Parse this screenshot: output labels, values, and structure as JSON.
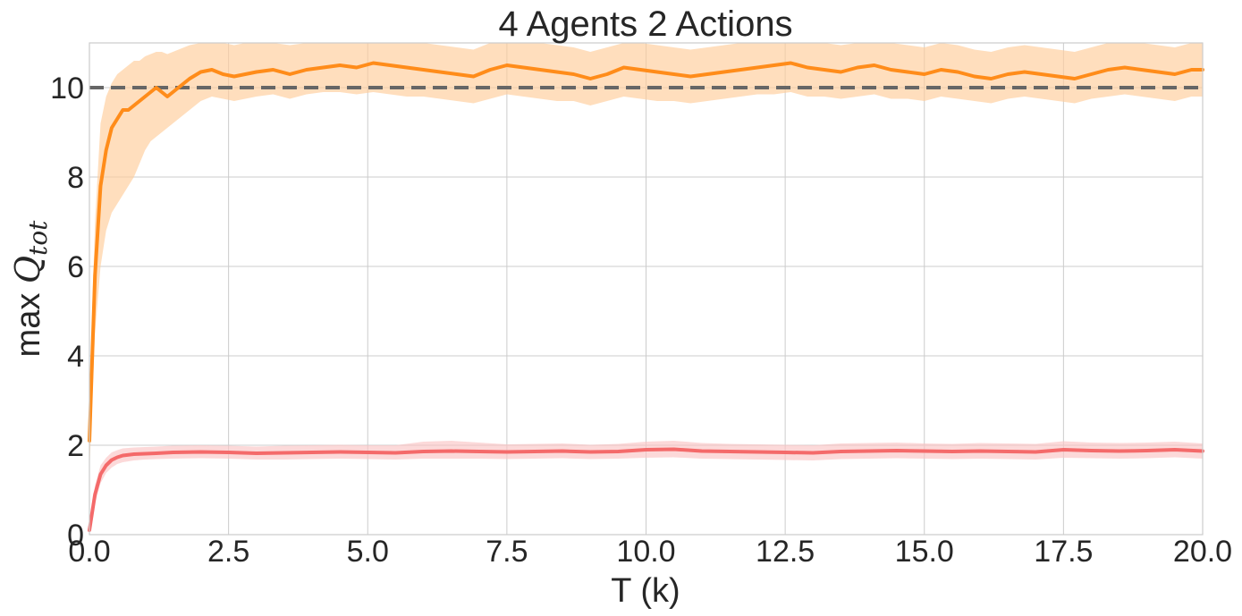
{
  "chart_data": {
    "type": "line",
    "title": "4 Agents 2 Actions",
    "xlabel": "T (k)",
    "ylabel": {
      "prefix": "max ",
      "symbol": "Q",
      "subscript": "tot"
    },
    "xlim": [
      0,
      20
    ],
    "ylim": [
      0,
      11
    ],
    "x_ticks": [
      0,
      2.5,
      5,
      7.5,
      10,
      12.5,
      15,
      17.5,
      20
    ],
    "x_tick_labels": [
      "0.0",
      "2.5",
      "5.0",
      "7.5",
      "10.0",
      "12.5",
      "15.0",
      "17.5",
      "20.0"
    ],
    "y_ticks": [
      0,
      2,
      4,
      6,
      8,
      10
    ],
    "y_tick_labels": [
      "0",
      "2",
      "4",
      "6",
      "8",
      "10"
    ],
    "grid": true,
    "reference_line": {
      "y": 10,
      "style": "dashed",
      "color": "#666666"
    },
    "series": [
      {
        "color": "#ff8c1a",
        "band_color": "#ffcc99",
        "x": [
          0,
          0.1,
          0.2,
          0.3,
          0.4,
          0.5,
          0.6,
          0.7,
          0.8,
          0.9,
          1.0,
          1.1,
          1.2,
          1.3,
          1.4,
          1.5,
          1.6,
          1.7,
          1.8,
          2.0,
          2.2,
          2.4,
          2.6,
          2.8,
          3.0,
          3.3,
          3.6,
          3.9,
          4.2,
          4.5,
          4.8,
          5.1,
          5.4,
          5.7,
          6.0,
          6.3,
          6.6,
          6.9,
          7.2,
          7.5,
          7.8,
          8.1,
          8.4,
          8.7,
          9.0,
          9.3,
          9.6,
          9.9,
          10.2,
          10.5,
          10.8,
          11.1,
          11.4,
          11.7,
          12.0,
          12.3,
          12.6,
          12.9,
          13.2,
          13.5,
          13.8,
          14.1,
          14.4,
          14.7,
          15.0,
          15.3,
          15.6,
          15.9,
          16.2,
          16.5,
          16.8,
          17.1,
          17.4,
          17.7,
          18.0,
          18.3,
          18.6,
          18.9,
          19.2,
          19.5,
          19.8,
          20.0
        ],
        "mean": [
          2.1,
          5.8,
          7.8,
          8.6,
          9.1,
          9.3,
          9.5,
          9.5,
          9.6,
          9.7,
          9.8,
          9.9,
          10.0,
          9.9,
          9.8,
          9.9,
          10.0,
          10.1,
          10.2,
          10.35,
          10.4,
          10.3,
          10.25,
          10.3,
          10.35,
          10.4,
          10.3,
          10.4,
          10.45,
          10.5,
          10.45,
          10.55,
          10.5,
          10.45,
          10.4,
          10.35,
          10.3,
          10.25,
          10.4,
          10.5,
          10.45,
          10.4,
          10.35,
          10.3,
          10.2,
          10.3,
          10.45,
          10.4,
          10.35,
          10.3,
          10.25,
          10.3,
          10.35,
          10.4,
          10.45,
          10.5,
          10.55,
          10.45,
          10.4,
          10.35,
          10.45,
          10.5,
          10.4,
          10.35,
          10.3,
          10.4,
          10.35,
          10.25,
          10.2,
          10.3,
          10.35,
          10.3,
          10.25,
          10.2,
          10.3,
          10.4,
          10.45,
          10.4,
          10.35,
          10.3,
          10.4,
          10.4
        ],
        "lower": [
          1.4,
          4.5,
          6.0,
          6.8,
          7.2,
          7.4,
          7.6,
          7.8,
          8.0,
          8.3,
          8.6,
          8.8,
          8.9,
          9.0,
          9.1,
          9.2,
          9.3,
          9.4,
          9.5,
          9.7,
          9.8,
          9.75,
          9.7,
          9.75,
          9.8,
          9.85,
          9.75,
          9.85,
          9.9,
          9.9,
          9.85,
          9.9,
          9.85,
          9.8,
          9.8,
          9.75,
          9.7,
          9.65,
          9.75,
          9.85,
          9.8,
          9.75,
          9.7,
          9.7,
          9.6,
          9.7,
          9.8,
          9.75,
          9.7,
          9.7,
          9.65,
          9.7,
          9.75,
          9.8,
          9.85,
          9.85,
          9.9,
          9.8,
          9.8,
          9.75,
          9.8,
          9.85,
          9.75,
          9.75,
          9.7,
          9.8,
          9.75,
          9.7,
          9.65,
          9.75,
          9.8,
          9.75,
          9.7,
          9.65,
          9.75,
          9.8,
          9.85,
          9.8,
          9.75,
          9.7,
          9.8,
          9.8
        ],
        "upper": [
          3.0,
          7.0,
          9.2,
          9.8,
          10.1,
          10.3,
          10.4,
          10.5,
          10.6,
          10.6,
          10.7,
          10.75,
          10.8,
          10.8,
          10.75,
          10.8,
          10.85,
          10.9,
          10.95,
          11.0,
          11.0,
          11.0,
          10.95,
          11.0,
          11.0,
          11.0,
          10.95,
          11.0,
          11.0,
          11.0,
          11.0,
          11.0,
          11.0,
          11.0,
          11.0,
          10.95,
          10.9,
          10.85,
          11.0,
          11.0,
          11.0,
          11.0,
          10.95,
          10.9,
          10.8,
          10.9,
          11.0,
          11.0,
          10.95,
          10.9,
          10.85,
          10.9,
          10.95,
          11.0,
          11.0,
          11.0,
          11.0,
          11.0,
          11.0,
          10.95,
          11.0,
          11.0,
          11.0,
          10.95,
          10.9,
          11.0,
          10.95,
          10.85,
          10.8,
          10.9,
          10.95,
          10.9,
          10.85,
          10.8,
          10.9,
          11.0,
          11.0,
          11.0,
          10.95,
          10.9,
          11.0,
          11.0
        ]
      },
      {
        "color": "#f46a6a",
        "band_color": "#fbc4c4",
        "x": [
          0,
          0.1,
          0.2,
          0.3,
          0.4,
          0.5,
          0.6,
          0.8,
          1.0,
          1.2,
          1.5,
          2.0,
          2.5,
          3.0,
          3.5,
          4.0,
          4.5,
          5.0,
          5.5,
          6.0,
          6.5,
          7.0,
          7.5,
          8.0,
          8.5,
          9.0,
          9.5,
          10.0,
          10.5,
          11.0,
          11.5,
          12.0,
          12.5,
          13.0,
          13.5,
          14.0,
          14.5,
          15.0,
          15.5,
          16.0,
          16.5,
          17.0,
          17.5,
          18.0,
          18.5,
          19.0,
          19.5,
          20.0
        ],
        "mean": [
          0.1,
          0.9,
          1.35,
          1.55,
          1.67,
          1.73,
          1.77,
          1.8,
          1.81,
          1.82,
          1.84,
          1.85,
          1.84,
          1.82,
          1.83,
          1.84,
          1.85,
          1.84,
          1.83,
          1.86,
          1.87,
          1.86,
          1.85,
          1.86,
          1.87,
          1.85,
          1.86,
          1.9,
          1.91,
          1.87,
          1.86,
          1.85,
          1.84,
          1.83,
          1.86,
          1.87,
          1.88,
          1.87,
          1.86,
          1.87,
          1.86,
          1.85,
          1.9,
          1.88,
          1.87,
          1.88,
          1.9,
          1.87
        ],
        "lower": [
          0.0,
          0.7,
          1.15,
          1.38,
          1.5,
          1.58,
          1.62,
          1.66,
          1.68,
          1.69,
          1.7,
          1.71,
          1.7,
          1.68,
          1.68,
          1.69,
          1.7,
          1.69,
          1.68,
          1.7,
          1.7,
          1.7,
          1.69,
          1.7,
          1.71,
          1.69,
          1.7,
          1.72,
          1.73,
          1.7,
          1.69,
          1.68,
          1.67,
          1.66,
          1.69,
          1.7,
          1.71,
          1.7,
          1.69,
          1.7,
          1.69,
          1.68,
          1.72,
          1.71,
          1.7,
          1.71,
          1.73,
          1.7
        ],
        "upper": [
          0.2,
          1.1,
          1.55,
          1.72,
          1.84,
          1.89,
          1.93,
          1.95,
          1.96,
          1.97,
          1.99,
          2.0,
          1.99,
          1.97,
          1.99,
          2.0,
          2.01,
          2.0,
          2.0,
          2.08,
          2.1,
          2.06,
          2.02,
          2.03,
          2.04,
          2.01,
          2.03,
          2.08,
          2.1,
          2.05,
          2.03,
          2.02,
          2.01,
          2.0,
          2.04,
          2.05,
          2.06,
          2.04,
          2.03,
          2.05,
          2.04,
          2.03,
          2.09,
          2.06,
          2.05,
          2.06,
          2.08,
          2.04
        ]
      }
    ]
  }
}
